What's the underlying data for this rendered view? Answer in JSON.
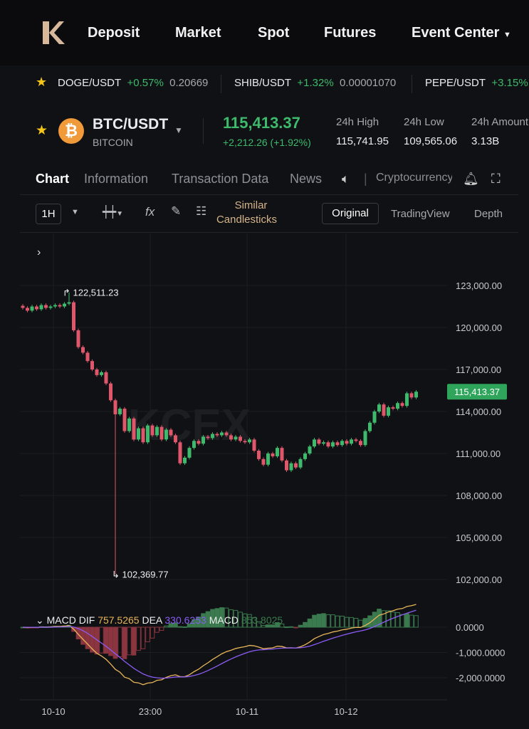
{
  "nav": {
    "items": [
      "Deposit",
      "Market",
      "Spot",
      "Futures",
      "Event Center"
    ],
    "logo": "KCEX"
  },
  "ticker": [
    {
      "pair": "DOGE/USDT",
      "change": "+0.57%",
      "price": "0.20669"
    },
    {
      "pair": "SHIB/USDT",
      "change": "+1.32%",
      "price": "0.00001070"
    },
    {
      "pair": "PEPE/USDT",
      "change": "+3.15%",
      "price": ""
    }
  ],
  "pair": {
    "symbol": "BTC/USDT",
    "name": "BITCOIN",
    "price": "115,413.37",
    "change": "+2,212.26 (+1.92%)",
    "stats": [
      {
        "label": "24h High",
        "value": "115,741.95"
      },
      {
        "label": "24h Low",
        "value": "109,565.06"
      },
      {
        "label": "24h Amount",
        "value": "3.13B"
      }
    ]
  },
  "tabs": [
    "Chart",
    "Information",
    "Transaction Data",
    "News"
  ],
  "tab_extra": "Cryptocurrency",
  "toolbar": {
    "interval": "1H",
    "similar1": "Similar",
    "similar2": "Candlesticks",
    "views": [
      "Original",
      "TradingView",
      "Depth"
    ]
  },
  "colors": {
    "up": "#3dba6c",
    "down": "#e0566a",
    "dif": "#e8b65a",
    "dea": "#8a5cf5",
    "bg": "#101114"
  },
  "chart_data": {
    "type": "candlestick",
    "y_ticks": [
      "123,000.00",
      "120,000.00",
      "117,000.00",
      "114,000.00",
      "111,000.00",
      "108,000.00",
      "105,000.00",
      "102,000.00"
    ],
    "ylim": [
      102000,
      123000
    ],
    "x_ticks": [
      "10-10",
      "23:00",
      "10-11",
      "10-12"
    ],
    "current_price": "115,413.37",
    "high_label": "122,511.23",
    "low_label": "102,369.77",
    "closes": [
      121400,
      121200,
      121500,
      121300,
      121600,
      121400,
      121500,
      121600,
      121500,
      121700,
      121800,
      119800,
      118600,
      118200,
      117600,
      117000,
      116600,
      116800,
      116000,
      114800,
      113800,
      114200,
      112600,
      113500,
      112000,
      112800,
      111800,
      113000,
      112300,
      112900,
      112000,
      112700,
      112300,
      111800,
      110300,
      110700,
      111400,
      111900,
      111700,
      112200,
      112100,
      112400,
      112300,
      112500,
      112300,
      112000,
      112200,
      111900,
      111800,
      112000,
      111200,
      110600,
      110200,
      111000,
      110800,
      111400,
      110500,
      109800,
      110300,
      110000,
      110600,
      111000,
      111500,
      112000,
      111700,
      111800,
      111500,
      111800,
      111600,
      111900,
      111700,
      112000,
      111900,
      111600,
      112600,
      113200,
      114000,
      114500,
      113700,
      114300,
      114200,
      114600,
      114400,
      115300,
      115000,
      115413
    ],
    "macd": {
      "label": "MACD",
      "dif_label": "DIF",
      "dif": "757.5265",
      "dea_label": "DEA",
      "dea": "330.6253",
      "hist_label": "MACD",
      "hist": "853.8025",
      "y_ticks": [
        "0.0000",
        "-1,000.0000",
        "-2,000.0000"
      ]
    }
  }
}
